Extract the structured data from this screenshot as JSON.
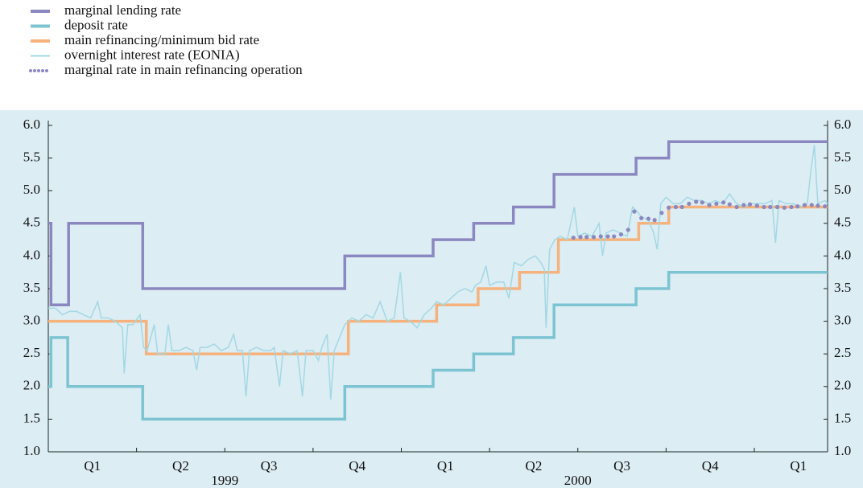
{
  "chart_data": {
    "type": "line",
    "categories": [
      "Q1",
      "Q2",
      "Q3",
      "Q4",
      "Q1",
      "Q2",
      "Q3",
      "Q4",
      "Q1"
    ],
    "years": [
      "1999",
      "2000"
    ],
    "xlim": [
      0,
      8.83
    ],
    "ylim": [
      1,
      6
    ],
    "yticks": [
      {
        "value": 1,
        "label": "1.0"
      },
      {
        "value": 1.5,
        "label": "1.5"
      },
      {
        "value": 2,
        "label": "2.0"
      },
      {
        "value": 2.5,
        "label": "2.5"
      },
      {
        "value": 3,
        "label": "3.0"
      },
      {
        "value": 3.5,
        "label": "3.5"
      },
      {
        "value": 4,
        "label": "4.0"
      },
      {
        "value": 4.5,
        "label": "4.5"
      },
      {
        "value": 5,
        "label": "5.0"
      },
      {
        "value": 5.5,
        "label": "5.5"
      },
      {
        "value": 6,
        "label": "6.0"
      }
    ],
    "y2lim": [
      1,
      6
    ],
    "y2ticks": [
      {
        "value": 1,
        "label": "1.0"
      },
      {
        "value": 1.5,
        "label": "1.5"
      },
      {
        "value": 2,
        "label": "2.0"
      },
      {
        "value": 2.5,
        "label": "2.5"
      },
      {
        "value": 3,
        "label": "3.0"
      },
      {
        "value": 3.5,
        "label": "3.5"
      },
      {
        "value": 4,
        "label": "4.0"
      },
      {
        "value": 4.5,
        "label": "4.5"
      },
      {
        "value": 5,
        "label": "5.0"
      },
      {
        "value": 5.5,
        "label": "5.5"
      },
      {
        "value": 6,
        "label": "6.0"
      }
    ],
    "series": [
      {
        "name": "marginal lending rate",
        "color": "#8b87c0",
        "style": "step",
        "x": [
          0,
          0.03,
          0.23,
          1.07,
          3.36,
          4.36,
          4.82,
          5.27,
          5.73,
          6.66,
          7.03,
          8.83
        ],
        "values": [
          4.5,
          3.25,
          4.5,
          3.5,
          4.0,
          4.25,
          4.5,
          4.75,
          5.25,
          5.5,
          5.75,
          5.75
        ]
      },
      {
        "name": "deposit rate",
        "color": "#7cc4d2",
        "style": "step",
        "x": [
          0,
          0.03,
          0.22,
          1.07,
          3.36,
          4.36,
          4.82,
          5.27,
          5.73,
          6.66,
          7.03,
          8.83
        ],
        "values": [
          2.0,
          2.75,
          2.0,
          1.5,
          2.0,
          2.25,
          2.5,
          2.75,
          3.25,
          3.5,
          3.75,
          3.75
        ]
      },
      {
        "name": "main refinancing/minimum bid rate",
        "color": "#f6b27c",
        "style": "step",
        "x": [
          0,
          1.11,
          3.4,
          4.4,
          4.87,
          5.34,
          5.78,
          6.69,
          7.03,
          8.83
        ],
        "values": [
          3.0,
          2.5,
          3.0,
          3.25,
          3.5,
          3.75,
          4.25,
          4.5,
          4.75,
          4.75
        ]
      },
      {
        "name": "overnight interest rate (EONIA)",
        "color": "#a3d8e4",
        "style": "line",
        "x": [
          0.0,
          0.08,
          0.16,
          0.24,
          0.32,
          0.4,
          0.48,
          0.56,
          0.6,
          0.68,
          0.76,
          0.8,
          0.84,
          0.86,
          0.9,
          0.96,
          1.04,
          1.08,
          1.12,
          1.2,
          1.24,
          1.32,
          1.36,
          1.4,
          1.48,
          1.56,
          1.64,
          1.68,
          1.72,
          1.8,
          1.88,
          1.96,
          2.04,
          2.1,
          2.14,
          2.2,
          2.24,
          2.28,
          2.36,
          2.44,
          2.52,
          2.56,
          2.62,
          2.66,
          2.74,
          2.82,
          2.88,
          2.92,
          3.0,
          3.06,
          3.1,
          3.16,
          3.2,
          3.24,
          3.3,
          3.36,
          3.44,
          3.52,
          3.6,
          3.68,
          3.76,
          3.84,
          3.92,
          3.99,
          4.03,
          4.1,
          4.18,
          4.26,
          4.34,
          4.4,
          4.48,
          4.56,
          4.64,
          4.72,
          4.8,
          4.84,
          4.9,
          4.96,
          5.0,
          5.08,
          5.16,
          5.22,
          5.28,
          5.36,
          5.44,
          5.52,
          5.58,
          5.62,
          5.64,
          5.68,
          5.74,
          5.8,
          5.88,
          5.96,
          6.0,
          6.08,
          6.16,
          6.24,
          6.28,
          6.32,
          6.4,
          6.48,
          6.56,
          6.62,
          6.66,
          6.72,
          6.8,
          6.86,
          6.9,
          6.94,
          7.0,
          7.08,
          7.16,
          7.24,
          7.32,
          7.4,
          7.48,
          7.56,
          7.64,
          7.72,
          7.8,
          7.88,
          7.96,
          8.04,
          8.12,
          8.2,
          8.24,
          8.28,
          8.36,
          8.44,
          8.52,
          8.6,
          8.64,
          8.68,
          8.72,
          8.8,
          8.83
        ],
        "values": [
          3.2,
          3.2,
          3.1,
          3.15,
          3.15,
          3.1,
          3.05,
          3.3,
          3.05,
          3.05,
          3.0,
          2.95,
          2.9,
          2.2,
          2.95,
          2.95,
          3.1,
          2.6,
          2.55,
          2.95,
          2.5,
          2.5,
          2.95,
          2.55,
          2.55,
          2.6,
          2.55,
          2.25,
          2.6,
          2.6,
          2.65,
          2.55,
          2.6,
          2.8,
          2.55,
          2.55,
          1.85,
          2.55,
          2.6,
          2.55,
          2.55,
          2.6,
          2.0,
          2.55,
          2.5,
          2.55,
          1.85,
          2.55,
          2.55,
          2.4,
          2.6,
          2.8,
          1.8,
          2.55,
          2.75,
          2.95,
          3.05,
          3.0,
          3.1,
          3.05,
          3.3,
          3.0,
          3.05,
          3.75,
          3.05,
          3.0,
          2.9,
          3.1,
          3.2,
          3.3,
          3.25,
          3.35,
          3.45,
          3.5,
          3.45,
          3.55,
          3.6,
          3.85,
          3.55,
          3.6,
          3.6,
          3.35,
          3.9,
          3.85,
          3.95,
          4.0,
          3.9,
          3.8,
          2.9,
          4.1,
          4.25,
          4.3,
          4.25,
          4.75,
          4.3,
          4.35,
          4.3,
          4.5,
          4.0,
          4.35,
          4.4,
          4.35,
          4.3,
          4.75,
          4.7,
          4.6,
          4.55,
          4.35,
          4.1,
          4.8,
          4.9,
          4.8,
          4.8,
          4.9,
          4.85,
          4.85,
          4.8,
          4.85,
          4.8,
          4.95,
          4.8,
          4.75,
          4.8,
          4.8,
          4.8,
          4.85,
          4.2,
          4.85,
          4.8,
          4.8,
          4.75,
          4.8,
          5.3,
          5.7,
          4.8,
          4.85,
          4.8
        ]
      },
      {
        "name": "marginal rate in main refinancing operation",
        "color": "#8b87c0",
        "style": "dots",
        "x": [
          5.95,
          6.03,
          6.1,
          6.18,
          6.26,
          6.34,
          6.41,
          6.49,
          6.57,
          6.64,
          6.72,
          6.8,
          6.87,
          6.95,
          7.03,
          7.11,
          7.18,
          7.26,
          7.34,
          7.41,
          7.49,
          7.57,
          7.65,
          7.72,
          7.8,
          7.88,
          7.95,
          8.03,
          8.11,
          8.18,
          8.26,
          8.34,
          8.42,
          8.49,
          8.57,
          8.65,
          8.72,
          8.8
        ],
        "values": [
          4.28,
          4.29,
          4.29,
          4.29,
          4.3,
          4.3,
          4.3,
          4.33,
          4.4,
          4.68,
          4.58,
          4.57,
          4.55,
          4.66,
          4.74,
          4.75,
          4.75,
          4.8,
          4.83,
          4.82,
          4.78,
          4.8,
          4.82,
          4.79,
          4.75,
          4.78,
          4.79,
          4.77,
          4.75,
          4.75,
          4.75,
          4.74,
          4.75,
          4.76,
          4.78,
          4.78,
          4.77,
          4.76
        ]
      }
    ]
  }
}
